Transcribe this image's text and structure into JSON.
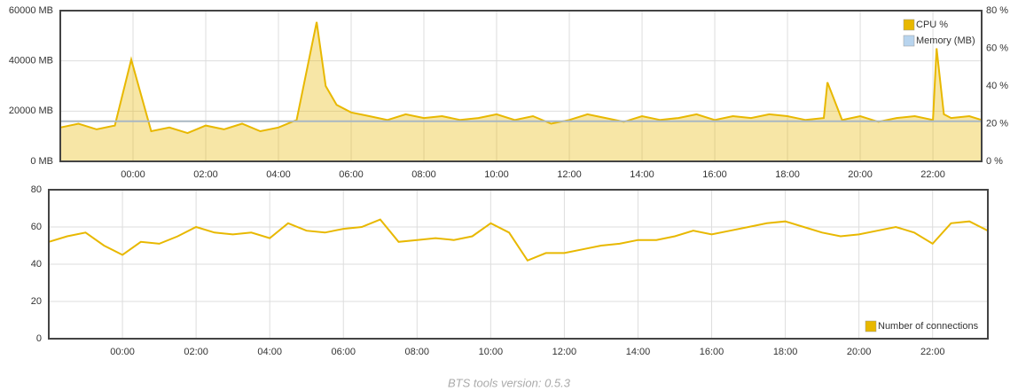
{
  "chart_data": [
    {
      "type": "line",
      "xlim": [
        -2,
        23.34
      ],
      "xticks": [
        {
          "value": 0,
          "label": "00:00"
        },
        {
          "value": 2,
          "label": "02:00"
        },
        {
          "value": 4,
          "label": "04:00"
        },
        {
          "value": 6,
          "label": "06:00"
        },
        {
          "value": 8,
          "label": "08:00"
        },
        {
          "value": 10,
          "label": "10:00"
        },
        {
          "value": 12,
          "label": "12:00"
        },
        {
          "value": 14,
          "label": "14:00"
        },
        {
          "value": 16,
          "label": "16:00"
        },
        {
          "value": 18,
          "label": "18:00"
        },
        {
          "value": 20,
          "label": "20:00"
        },
        {
          "value": 22,
          "label": "22:00"
        }
      ],
      "ylim": [
        0,
        60000
      ],
      "yticks": [
        {
          "value": 0,
          "label": "0 MB"
        },
        {
          "value": 20000,
          "label": "20000 MB"
        },
        {
          "value": 40000,
          "label": "40000 MB"
        },
        {
          "value": 60000,
          "label": "60000 MB"
        }
      ],
      "y2lim": [
        0,
        80
      ],
      "y2ticks": [
        {
          "value": 0,
          "label": "0 %"
        },
        {
          "value": 20,
          "label": "20 %"
        },
        {
          "value": 40,
          "label": "40 %"
        },
        {
          "value": 60,
          "label": "60 %"
        },
        {
          "value": 80,
          "label": "80 %"
        }
      ],
      "grid": true,
      "legend": "top-right",
      "series": [
        {
          "name": "CPU %",
          "color": "#e8b800",
          "axis": "y2",
          "area": true,
          "x": [
            -2,
            -1.5,
            -1,
            -0.5,
            -0.05,
            0.5,
            1,
            1.5,
            2,
            2.5,
            3,
            3.5,
            4,
            4.5,
            5.05,
            5.3,
            5.6,
            6,
            6.5,
            7,
            7.5,
            8,
            8.5,
            9,
            9.5,
            10,
            10.5,
            11,
            11.5,
            12,
            12.5,
            13,
            13.5,
            14,
            14.5,
            15,
            15.5,
            16,
            16.5,
            17,
            17.5,
            18,
            18.5,
            19,
            19.1,
            19.5,
            20,
            20.5,
            21,
            21.5,
            22,
            22.1,
            22.3,
            22.5,
            23,
            23.34
          ],
          "values": [
            18,
            20,
            17,
            19,
            54,
            16,
            18,
            15,
            19,
            17,
            20,
            16,
            18,
            22,
            74,
            40,
            30,
            26,
            24,
            22,
            25,
            23,
            24,
            22,
            23,
            25,
            22,
            24,
            20,
            22,
            25,
            23,
            21,
            24,
            22,
            23,
            25,
            22,
            24,
            23,
            25,
            24,
            22,
            23,
            42,
            22,
            24,
            21,
            23,
            24,
            22,
            60,
            25,
            23,
            24,
            22
          ]
        },
        {
          "name": "Memory (MB)",
          "color": "#b8d4ee",
          "x": [
            -2,
            23.34
          ],
          "values": [
            16000,
            16000
          ]
        }
      ]
    },
    {
      "type": "line",
      "xlim": [
        -2,
        23.5
      ],
      "xticks": [
        {
          "value": 0,
          "label": "00:00"
        },
        {
          "value": 2,
          "label": "02:00"
        },
        {
          "value": 4,
          "label": "04:00"
        },
        {
          "value": 6,
          "label": "06:00"
        },
        {
          "value": 8,
          "label": "08:00"
        },
        {
          "value": 10,
          "label": "10:00"
        },
        {
          "value": 12,
          "label": "12:00"
        },
        {
          "value": 14,
          "label": "14:00"
        },
        {
          "value": 16,
          "label": "16:00"
        },
        {
          "value": 18,
          "label": "18:00"
        },
        {
          "value": 20,
          "label": "20:00"
        },
        {
          "value": 22,
          "label": "22:00"
        }
      ],
      "ylim": [
        0,
        80
      ],
      "yticks": [
        0,
        20,
        40,
        60,
        80
      ],
      "grid": true,
      "legend": "bottom-right",
      "series": [
        {
          "name": "Number of connections",
          "color": "#e8b800",
          "x": [
            -2,
            -1.5,
            -1,
            -0.5,
            0,
            0.5,
            1,
            1.5,
            2,
            2.5,
            3,
            3.5,
            4,
            4.5,
            5,
            5.5,
            6,
            6.5,
            7,
            7.5,
            8,
            8.5,
            9,
            9.5,
            10,
            10.5,
            11,
            11.5,
            12,
            12.5,
            13,
            13.5,
            14,
            14.5,
            15,
            15.5,
            16,
            16.5,
            17,
            17.5,
            18,
            18.5,
            19,
            19.5,
            20,
            20.5,
            21,
            21.5,
            22,
            22.5,
            23,
            23.5
          ],
          "values": [
            52,
            55,
            57,
            50,
            45,
            52,
            51,
            55,
            60,
            57,
            56,
            57,
            54,
            62,
            58,
            57,
            59,
            60,
            64,
            52,
            53,
            54,
            53,
            55,
            62,
            57,
            42,
            46,
            46,
            48,
            50,
            51,
            53,
            53,
            55,
            58,
            56,
            58,
            60,
            62,
            63,
            60,
            57,
            55,
            56,
            58,
            60,
            57,
            51,
            62,
            63,
            58
          ]
        }
      ]
    }
  ],
  "footer": "BTS tools version: 0.5.3"
}
